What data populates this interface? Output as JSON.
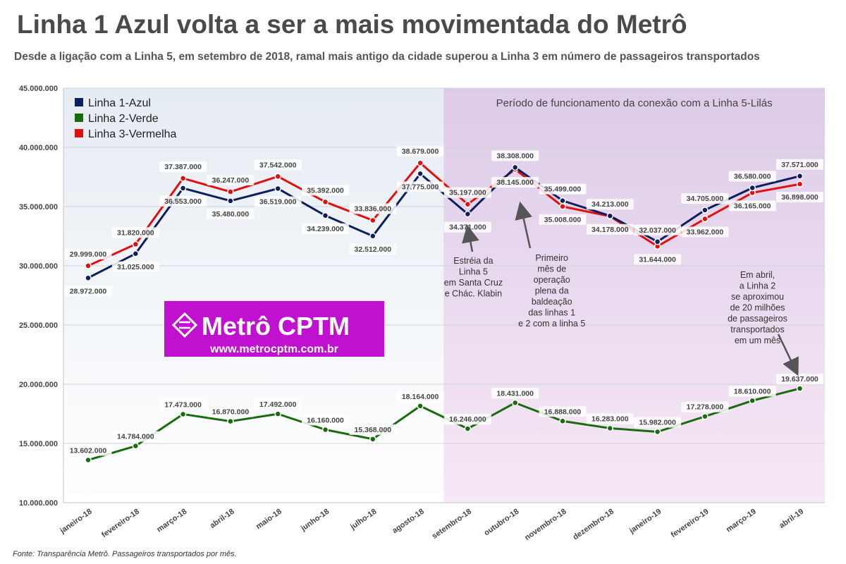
{
  "title": "Linha 1 Azul volta a ser a mais movimentada do Metrô",
  "subtitle": "Desde a ligação com a Linha 5, em setembro de 2018, ramal mais antigo da cidade superou a Linha 3 em número de passageiros transportados",
  "source": "Fonte: Transparência Metrô. Passageiros transportados por mês.",
  "logo": {
    "brand": "Metrô CPTM",
    "url": "www.metrocptm.com.br",
    "background": "#c010d0"
  },
  "colors": {
    "linha1": "#0d1f5c",
    "linha2": "#1a6b0f",
    "linha3": "#e01010",
    "period_background": "#e6d6ee",
    "plot_background": "#e9eef5"
  },
  "chart_data": {
    "type": "line",
    "categories": [
      "janeiro-18",
      "fevereiro-18",
      "março-18",
      "abril-18",
      "maio-18",
      "junho-18",
      "julho-18",
      "agosto-18",
      "setembro-18",
      "outubro-18",
      "novembro-18",
      "dezembro-18",
      "janeiro-19",
      "fevereiro-19",
      "março-19",
      "abril-19"
    ],
    "ylim": [
      10000000,
      45000000
    ],
    "yticks": [
      "10.000.000",
      "15.000.000",
      "20.000.000",
      "25.000.000",
      "30.000.000",
      "35.000.000",
      "40.000.000",
      "45.000.000"
    ],
    "ytick_values": [
      10000000,
      15000000,
      20000000,
      25000000,
      30000000,
      35000000,
      40000000,
      45000000
    ],
    "grid": true,
    "legend_placement": "top-left",
    "series": [
      {
        "name": "Linha 1-Azul",
        "color": "#0d1f5c",
        "values": [
          28972000,
          31025000,
          36553000,
          35480000,
          36519000,
          34239000,
          32512000,
          37775000,
          34371000,
          38308000,
          35499000,
          34213000,
          32037000,
          34705000,
          36580000,
          37571000
        ],
        "labels": [
          "28.972.000",
          "31.025.000",
          "36.553.000",
          "35.480.000",
          "36.519.000",
          "34.239.000",
          "32.512.000",
          "37.775.000",
          "34.371.000",
          "38.308.000",
          "35.499.000",
          "34.213.000",
          "32.037.000",
          "34.705.000",
          "36.580.000",
          "37.571.000"
        ]
      },
      {
        "name": "Linha 2-Verde",
        "color": "#1a6b0f",
        "values": [
          13602000,
          14784000,
          17473000,
          16870000,
          17492000,
          16160000,
          15368000,
          18164000,
          16246000,
          18431000,
          16888000,
          16283000,
          15982000,
          17278000,
          18610000,
          19637000
        ],
        "labels": [
          "13.602.000",
          "14.784.000",
          "17.473.000",
          "16.870.000",
          "17.492.000",
          "16.160.000",
          "15.368.000",
          "18.164.000",
          "16.246.000",
          "18.431.000",
          "16.888.000",
          "16.283.000",
          "15.982.000",
          "17.278.000",
          "18.610.000",
          "19.637.000"
        ]
      },
      {
        "name": "Linha 3-Vermelha",
        "color": "#e01010",
        "values": [
          29999000,
          31820000,
          37387000,
          36247000,
          37542000,
          35392000,
          33836000,
          38679000,
          35197000,
          38145000,
          35008000,
          34178000,
          31644000,
          33962000,
          36165000,
          36898000
        ],
        "labels": [
          "29.999.000",
          "31.820.000",
          "37.387.000",
          "36.247.000",
          "37.542.000",
          "35.392.000",
          "33.836.000",
          "38.679.000",
          "35.197.000",
          "38.145.000",
          "35.008.000",
          "34.178.000",
          "31.644.000",
          "33.962.000",
          "36.165.000",
          "36.898.000"
        ]
      }
    ],
    "highlight_period": {
      "label": "Período de funcionamento da conexão com a Linha 5-Lilás",
      "start_category": "setembro-18",
      "end_category": "abril-19"
    },
    "annotations": [
      {
        "category": "setembro-18",
        "lines": [
          "Estréia da",
          "Linha 5",
          "em Santa Cruz",
          "e Chác. Klabin"
        ]
      },
      {
        "category": "outubro-18",
        "lines": [
          "Primeiro",
          "mês de",
          "operação",
          "plena da",
          "baldeação",
          "das linhas 1",
          "e 2 com a linha 5"
        ]
      },
      {
        "category": "abril-19",
        "lines": [
          "Em abril,",
          "a Linha 2",
          "se aproximou",
          "de 20 milhões",
          "de passageiros",
          "transportados",
          "em um mês"
        ]
      }
    ]
  }
}
